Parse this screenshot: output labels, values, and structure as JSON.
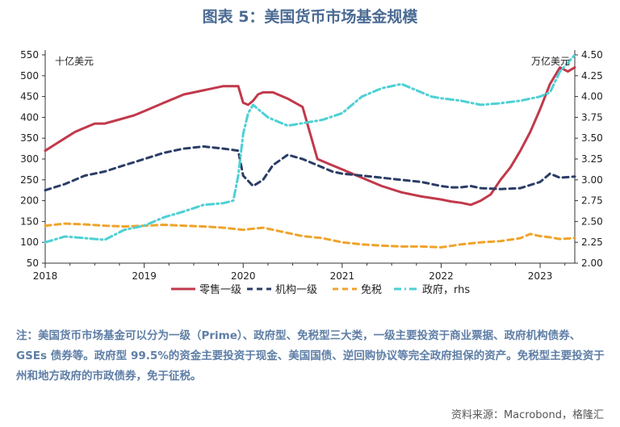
{
  "figure_title": "图表 5：美国货币市场基金规模",
  "note": "注：美国货币市场基金可以分为一级（Prime）、政府型、免税型三大类，一级主要投资于商业票据、政府机构债券、GSEs 债券等。政府型 99.5%的资金主要投资于现金、美国国债、逆回购协议等完全政府担保的资产。免税型主要投资于州和地方政府的市政债券，免于征税。",
  "source": "资料来源：Macrobond，格隆汇",
  "chart_data": {
    "type": "line",
    "left_axis_unit": "十亿美元",
    "right_axis_unit": "万亿美元",
    "ylim_left": [
      50,
      550
    ],
    "yticks_left": [
      "50",
      "100",
      "150",
      "200",
      "250",
      "300",
      "350",
      "400",
      "450",
      "500",
      "550"
    ],
    "ylim_right": [
      2.0,
      4.5
    ],
    "yticks_right": [
      "2.00",
      "2.25",
      "2.50",
      "2.75",
      "3.00",
      "3.25",
      "3.50",
      "3.75",
      "4.00",
      "4.25",
      "4.50"
    ],
    "xlim": [
      2018.0,
      2023.35
    ],
    "xticks": [
      "2018",
      "2019",
      "2020",
      "2021",
      "2022",
      "2023"
    ],
    "legend_position": "bottom",
    "colors": {
      "retail": "#c1394b",
      "institutional": "#2b3d66",
      "tax_exempt": "#f0a32a",
      "government": "#4dd0d4"
    },
    "series": [
      {
        "name": "零售一级",
        "axis": "left",
        "style": "solid",
        "color": "#c1394b",
        "x": [
          2018.0,
          2018.1,
          2018.2,
          2018.3,
          2018.4,
          2018.5,
          2018.6,
          2018.75,
          2018.9,
          2019.0,
          2019.2,
          2019.4,
          2019.6,
          2019.8,
          2019.95,
          2020.0,
          2020.05,
          2020.1,
          2020.15,
          2020.2,
          2020.3,
          2020.45,
          2020.6,
          2020.75,
          2020.85,
          2021.0,
          2021.2,
          2021.4,
          2021.6,
          2021.8,
          2022.0,
          2022.1,
          2022.2,
          2022.3,
          2022.4,
          2022.5,
          2022.6,
          2022.7,
          2022.8,
          2022.9,
          2023.0,
          2023.1,
          2023.2,
          2023.28,
          2023.35
        ],
        "y": [
          320,
          335,
          350,
          365,
          375,
          385,
          385,
          395,
          405,
          415,
          435,
          455,
          465,
          475,
          475,
          435,
          430,
          440,
          455,
          460,
          460,
          445,
          425,
          300,
          290,
          275,
          255,
          235,
          220,
          210,
          203,
          198,
          195,
          190,
          200,
          215,
          250,
          280,
          320,
          365,
          420,
          480,
          520,
          510,
          520
        ]
      },
      {
        "name": "机构一级",
        "axis": "left",
        "style": "dashed",
        "color": "#2b3d66",
        "x": [
          2018.0,
          2018.2,
          2018.4,
          2018.6,
          2018.8,
          2019.0,
          2019.2,
          2019.4,
          2019.6,
          2019.8,
          2019.95,
          2020.0,
          2020.1,
          2020.2,
          2020.3,
          2020.45,
          2020.6,
          2020.75,
          2020.9,
          2021.0,
          2021.2,
          2021.4,
          2021.6,
          2021.8,
          2022.0,
          2022.1,
          2022.2,
          2022.3,
          2022.4,
          2022.6,
          2022.8,
          2023.0,
          2023.1,
          2023.2,
          2023.35
        ],
        "y": [
          225,
          240,
          260,
          270,
          285,
          300,
          315,
          325,
          330,
          325,
          320,
          260,
          235,
          250,
          285,
          310,
          300,
          285,
          270,
          265,
          260,
          255,
          250,
          245,
          235,
          232,
          232,
          235,
          230,
          228,
          230,
          245,
          265,
          255,
          258
        ]
      },
      {
        "name": "免税",
        "axis": "left",
        "style": "dashed",
        "color": "#f0a32a",
        "x": [
          2018.0,
          2018.2,
          2018.4,
          2018.6,
          2018.8,
          2019.0,
          2019.2,
          2019.4,
          2019.6,
          2019.8,
          2020.0,
          2020.2,
          2020.4,
          2020.6,
          2020.8,
          2021.0,
          2021.2,
          2021.4,
          2021.6,
          2021.8,
          2022.0,
          2022.2,
          2022.4,
          2022.6,
          2022.8,
          2022.9,
          2023.0,
          2023.1,
          2023.2,
          2023.35
        ],
        "y": [
          140,
          145,
          143,
          140,
          138,
          140,
          142,
          140,
          138,
          135,
          130,
          135,
          125,
          115,
          110,
          100,
          95,
          92,
          90,
          90,
          88,
          95,
          100,
          103,
          110,
          120,
          115,
          112,
          108,
          110
        ]
      },
      {
        "name": "政府，rhs",
        "axis": "right",
        "style": "dashdot",
        "color": "#4dd0d4",
        "x": [
          2018.0,
          2018.2,
          2018.4,
          2018.6,
          2018.8,
          2019.0,
          2019.1,
          2019.2,
          2019.4,
          2019.6,
          2019.8,
          2019.9,
          2019.95,
          2020.0,
          2020.05,
          2020.1,
          2020.15,
          2020.25,
          2020.35,
          2020.45,
          2020.6,
          2020.8,
          2021.0,
          2021.1,
          2021.2,
          2021.4,
          2021.6,
          2021.8,
          2021.9,
          2022.0,
          2022.2,
          2022.4,
          2022.6,
          2022.8,
          2023.0,
          2023.1,
          2023.2,
          2023.35
        ],
        "y": [
          2.25,
          2.32,
          2.3,
          2.28,
          2.4,
          2.45,
          2.5,
          2.55,
          2.62,
          2.7,
          2.72,
          2.75,
          3.05,
          3.55,
          3.8,
          3.9,
          3.85,
          3.75,
          3.7,
          3.65,
          3.68,
          3.72,
          3.8,
          3.9,
          4.0,
          4.1,
          4.15,
          4.05,
          4.0,
          3.98,
          3.95,
          3.9,
          3.92,
          3.95,
          4.0,
          4.05,
          4.3,
          4.5
        ]
      }
    ]
  }
}
